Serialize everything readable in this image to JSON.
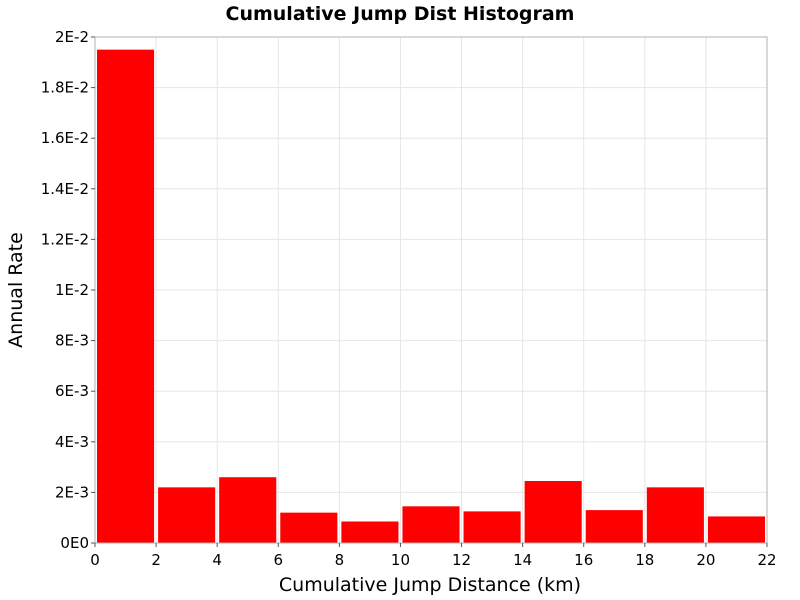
{
  "chart_data": {
    "type": "bar",
    "title": "Cumulative Jump Dist Histogram",
    "xlabel": "Cumulative Jump Distance (km)",
    "ylabel": "Annual Rate",
    "xlim": [
      0,
      22
    ],
    "ylim": [
      0,
      0.02
    ],
    "bin_width": 2,
    "bins": [
      {
        "x_start": 0,
        "x_end": 2,
        "value": 0.0195
      },
      {
        "x_start": 2,
        "x_end": 4,
        "value": 0.0022
      },
      {
        "x_start": 4,
        "x_end": 6,
        "value": 0.0026
      },
      {
        "x_start": 6,
        "x_end": 8,
        "value": 0.0012
      },
      {
        "x_start": 8,
        "x_end": 10,
        "value": 0.00085
      },
      {
        "x_start": 10,
        "x_end": 12,
        "value": 0.00145
      },
      {
        "x_start": 12,
        "x_end": 14,
        "value": 0.00125
      },
      {
        "x_start": 14,
        "x_end": 16,
        "value": 0.00245
      },
      {
        "x_start": 16,
        "x_end": 18,
        "value": 0.0013
      },
      {
        "x_start": 18,
        "x_end": 20,
        "value": 0.0022
      },
      {
        "x_start": 20,
        "x_end": 22,
        "value": 0.00105
      }
    ],
    "x_ticks": [
      {
        "value": 0,
        "label": "0"
      },
      {
        "value": 2,
        "label": "2"
      },
      {
        "value": 4,
        "label": "4"
      },
      {
        "value": 6,
        "label": "6"
      },
      {
        "value": 8,
        "label": "8"
      },
      {
        "value": 10,
        "label": "10"
      },
      {
        "value": 12,
        "label": "12"
      },
      {
        "value": 14,
        "label": "14"
      },
      {
        "value": 16,
        "label": "16"
      },
      {
        "value": 18,
        "label": "18"
      },
      {
        "value": 20,
        "label": "20"
      },
      {
        "value": 22,
        "label": "22"
      }
    ],
    "y_ticks": [
      {
        "value": 0,
        "label": "0E0"
      },
      {
        "value": 0.002,
        "label": "2E-3"
      },
      {
        "value": 0.004,
        "label": "4E-3"
      },
      {
        "value": 0.006,
        "label": "6E-3"
      },
      {
        "value": 0.008,
        "label": "8E-3"
      },
      {
        "value": 0.01,
        "label": "1E-2"
      },
      {
        "value": 0.012,
        "label": "1.2E-2"
      },
      {
        "value": 0.014,
        "label": "1.4E-2"
      },
      {
        "value": 0.016,
        "label": "1.6E-2"
      },
      {
        "value": 0.018,
        "label": "1.8E-2"
      },
      {
        "value": 0.02,
        "label": "2E-2"
      }
    ],
    "grid": true,
    "legend": "none",
    "bar_color": "#ff0000"
  }
}
